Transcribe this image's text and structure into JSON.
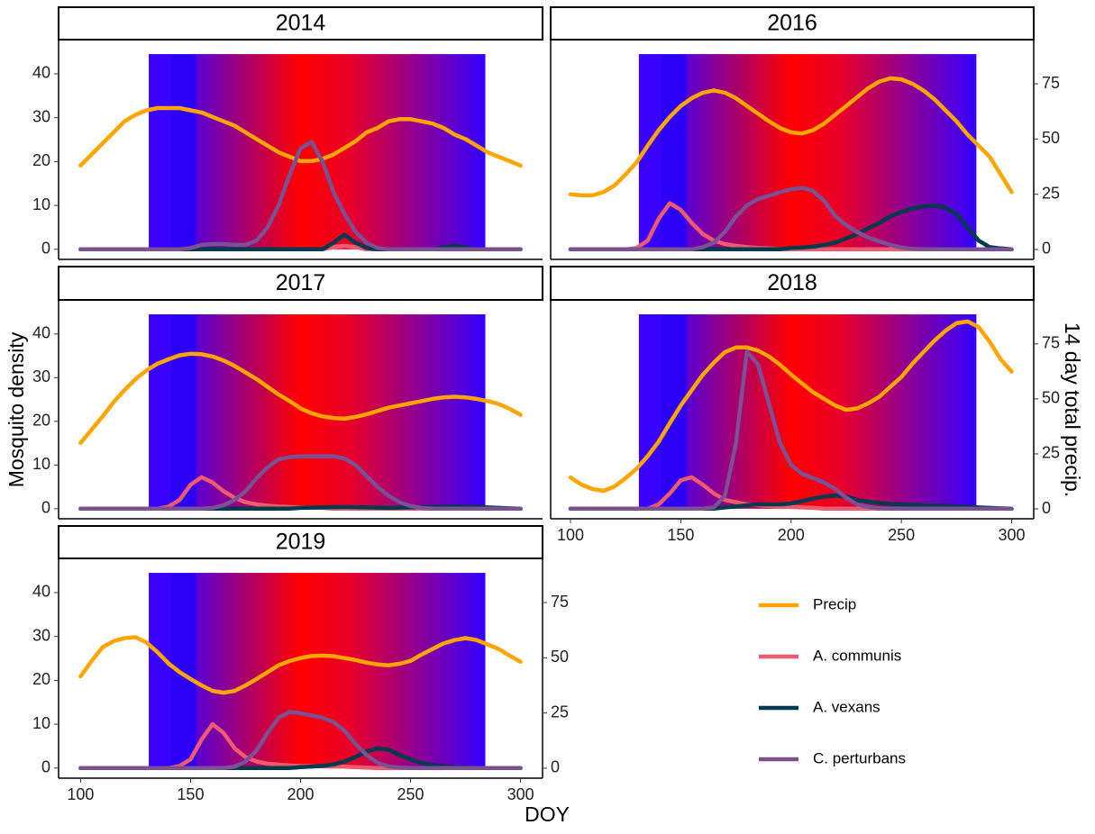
{
  "chart_data": [
    {
      "type": "line",
      "title": "2014",
      "y_label": "Mosquito density",
      "y2_label": "14 day total precip.",
      "x_label": "DOY",
      "x": [
        100,
        105,
        110,
        115,
        120,
        125,
        130,
        135,
        140,
        145,
        150,
        155,
        160,
        165,
        170,
        175,
        180,
        185,
        190,
        195,
        200,
        205,
        210,
        215,
        220,
        225,
        230,
        235,
        240,
        245,
        250,
        255,
        260,
        265,
        270,
        275,
        280,
        285,
        290,
        295,
        300
      ],
      "xlim": [
        90,
        310
      ],
      "ylim": [
        -2.3,
        47.8
      ],
      "y2lim": [
        -4.5,
        95
      ],
      "yticks": [
        0,
        10,
        20,
        30,
        40
      ],
      "shade": {
        "x": [
          131,
          284
        ],
        "y": [
          0,
          44.5
        ]
      },
      "series": [
        {
          "name": "Precip",
          "color": "#FFA500",
          "axis": "y2",
          "values": [
            38,
            43,
            48,
            53,
            58,
            61,
            63,
            64,
            64,
            64,
            63,
            62,
            60,
            58,
            56,
            53,
            50,
            47,
            44,
            42,
            40,
            40,
            41,
            43,
            46,
            49,
            53,
            55,
            58,
            59,
            59,
            58,
            57,
            55,
            52,
            50,
            47,
            44,
            42,
            40,
            38
          ]
        },
        {
          "name": "A. communis",
          "color": "#EE5A6E",
          "values": [
            0,
            0,
            0,
            0,
            0,
            0,
            0,
            0,
            0,
            0,
            0,
            0,
            0,
            0,
            0,
            0,
            0,
            0,
            0,
            0,
            0,
            0,
            0,
            0.5,
            0.8,
            0.5,
            0,
            0,
            0,
            0,
            0,
            0,
            0,
            0,
            0,
            0,
            0,
            0,
            0,
            0,
            0
          ]
        },
        {
          "name": "A. vexans",
          "color": "#003A4F",
          "values": [
            0,
            0,
            0,
            0,
            0,
            0,
            0,
            0,
            0,
            0,
            0,
            0,
            0,
            0,
            0,
            0,
            0,
            0,
            0,
            0,
            0,
            0,
            0,
            1.5,
            3.3,
            1.5,
            0.3,
            0,
            0,
            0,
            0,
            0,
            0,
            0.5,
            0.8,
            0.4,
            0,
            0,
            0,
            0,
            0
          ]
        },
        {
          "name": "C. perturbans",
          "color": "#7A5195",
          "values": [
            0,
            0,
            0,
            0,
            0,
            0,
            0,
            0,
            0,
            0,
            0.3,
            1,
            1.2,
            1.2,
            1,
            1,
            2,
            5,
            10,
            17,
            23,
            24.5,
            20,
            13,
            8,
            4,
            1.5,
            0.3,
            0,
            0,
            0,
            0,
            0,
            0,
            0,
            0,
            0,
            0,
            0,
            0,
            0
          ]
        }
      ]
    },
    {
      "type": "line",
      "title": "2016",
      "x": [
        100,
        105,
        110,
        115,
        120,
        125,
        130,
        135,
        140,
        145,
        150,
        155,
        160,
        165,
        170,
        175,
        180,
        185,
        190,
        195,
        200,
        205,
        210,
        215,
        220,
        225,
        230,
        235,
        240,
        245,
        250,
        255,
        260,
        265,
        270,
        275,
        280,
        285,
        290,
        295,
        300
      ],
      "xlim": [
        91,
        310
      ],
      "ylim": [
        -2.3,
        47.8
      ],
      "y2lim": [
        -4.5,
        95
      ],
      "y2ticks": [
        0,
        25,
        50,
        75
      ],
      "shade": {
        "x": [
          131,
          284
        ],
        "y": [
          0,
          44.5
        ]
      },
      "series": [
        {
          "axis": "y2",
          "values": [
            25,
            24.5,
            24.5,
            26,
            29,
            34,
            39.5,
            47,
            54,
            60,
            65,
            68.5,
            71,
            72,
            71,
            68.5,
            65,
            61.5,
            58,
            55,
            53,
            52.5,
            54,
            57,
            61,
            65,
            69,
            73,
            76,
            77.5,
            77,
            75,
            72,
            68,
            63,
            58,
            52,
            47,
            42,
            34,
            26
          ]
        },
        {
          "values": [
            0,
            0,
            0,
            0,
            0,
            0,
            0.3,
            2,
            7,
            10.5,
            9,
            6,
            3.5,
            2,
            1.2,
            0.8,
            0.5,
            0.3,
            0.2,
            0,
            0,
            0,
            0,
            0,
            0,
            0,
            0,
            0,
            0,
            0,
            0,
            0,
            0,
            0,
            0,
            0,
            0,
            0,
            0,
            0,
            0
          ]
        },
        {
          "values": [
            0,
            0,
            0,
            0,
            0,
            0,
            0,
            0,
            0,
            0,
            0,
            0,
            0,
            0,
            0,
            0,
            0,
            0,
            0,
            0,
            0.3,
            0.4,
            0.6,
            1,
            1.5,
            2.5,
            3.5,
            4.8,
            6,
            7.5,
            8.5,
            9.3,
            9.8,
            10,
            9.5,
            8,
            5,
            2,
            0.5,
            0.2,
            0
          ]
        },
        {
          "values": [
            0,
            0,
            0,
            0,
            0,
            0,
            0,
            0,
            0,
            0,
            0,
            0,
            0.5,
            1.5,
            4,
            7.5,
            10,
            11.5,
            12.2,
            13,
            13.7,
            14,
            13.3,
            11,
            7.6,
            5.5,
            3.9,
            2.7,
            1.8,
            1,
            0.4,
            0.1,
            0,
            0,
            0,
            0,
            0,
            0,
            0,
            0,
            0
          ]
        }
      ]
    },
    {
      "type": "line",
      "title": "2017",
      "x": [
        100,
        105,
        110,
        115,
        120,
        125,
        130,
        135,
        140,
        145,
        150,
        155,
        160,
        165,
        170,
        175,
        180,
        185,
        190,
        195,
        200,
        205,
        210,
        215,
        220,
        225,
        230,
        235,
        240,
        245,
        250,
        255,
        260,
        265,
        270,
        275,
        280,
        285,
        290,
        295,
        300
      ],
      "xlim": [
        90,
        310
      ],
      "ylim": [
        -2.3,
        47.8
      ],
      "y2lim": [
        -4.5,
        95
      ],
      "yticks": [
        0,
        10,
        20,
        30,
        40
      ],
      "shade": {
        "x": [
          131,
          284
        ],
        "y": [
          0,
          44.5
        ]
      },
      "series": [
        {
          "axis": "y2",
          "values": [
            30,
            36,
            42,
            48.5,
            54,
            59,
            63,
            66,
            68,
            69.8,
            70.5,
            70.3,
            69.3,
            67.5,
            65,
            62,
            59,
            55.5,
            52,
            49,
            45.7,
            43.5,
            42,
            41.3,
            41,
            41.8,
            43,
            44.5,
            46,
            47,
            48,
            49,
            50,
            50.7,
            51,
            50.7,
            50,
            49,
            47.7,
            45.5,
            42.8
          ]
        },
        {
          "values": [
            0,
            0,
            0,
            0,
            0,
            0,
            0,
            0,
            0.5,
            2,
            5.5,
            7.2,
            6,
            4,
            2.5,
            1.5,
            1,
            0.7,
            0.5,
            0.4,
            0.3,
            0.2,
            0.2,
            0,
            0,
            0,
            0,
            0,
            0,
            0,
            0,
            0,
            0,
            0,
            0,
            0,
            0,
            0,
            0,
            0,
            0
          ]
        },
        {
          "values": [
            0,
            0,
            0,
            0,
            0,
            0,
            0,
            0,
            0,
            0,
            0,
            0,
            0,
            0,
            0,
            0,
            0,
            0,
            0,
            0,
            0.2,
            0.25,
            0.3,
            0.35,
            0.4,
            0.35,
            0.3,
            0.25,
            0.2,
            0.25,
            0.3,
            0.35,
            0.4,
            0.45,
            0.5,
            0.45,
            0.4,
            0.3,
            0.2,
            0.1,
            0
          ]
        },
        {
          "values": [
            0,
            0,
            0,
            0,
            0,
            0,
            0,
            0,
            0,
            0,
            0,
            0,
            0.2,
            0.8,
            2,
            4,
            7,
            9.5,
            11.3,
            11.8,
            12,
            12,
            12,
            12,
            11.5,
            10,
            7.5,
            5,
            3,
            1.5,
            0.6,
            0.2,
            0,
            0,
            0,
            0,
            0,
            0,
            0,
            0,
            0
          ]
        }
      ]
    },
    {
      "type": "line",
      "title": "2018",
      "x": [
        100,
        105,
        110,
        115,
        120,
        125,
        130,
        135,
        140,
        145,
        150,
        155,
        160,
        165,
        170,
        175,
        180,
        185,
        190,
        195,
        200,
        205,
        210,
        215,
        220,
        225,
        230,
        235,
        240,
        245,
        250,
        255,
        260,
        265,
        270,
        275,
        280,
        285,
        290,
        295,
        300
      ],
      "xlim": [
        91,
        310
      ],
      "ylim": [
        -2.3,
        47.8
      ],
      "y2lim": [
        -4.5,
        95
      ],
      "y2ticks": [
        0,
        25,
        50,
        75
      ],
      "xticks": [
        100,
        150,
        200,
        250,
        300
      ],
      "shade": {
        "x": [
          131,
          284
        ],
        "y": [
          0,
          44.5
        ]
      },
      "series": [
        {
          "axis": "y2",
          "values": [
            14.3,
            11,
            9,
            8.2,
            10.2,
            14,
            18.3,
            24,
            30.6,
            39,
            47,
            54,
            61,
            66.5,
            71.3,
            73.4,
            73.4,
            72,
            69.3,
            65.5,
            61,
            57,
            53,
            50,
            47,
            45,
            45.7,
            48,
            51,
            55.5,
            60,
            66,
            71.3,
            76.5,
            81,
            84.4,
            85.2,
            82.7,
            76,
            68,
            62.4
          ]
        },
        {
          "values": [
            0,
            0,
            0,
            0,
            0,
            0,
            0,
            0,
            1,
            3.5,
            6.5,
            7.2,
            5.5,
            3.5,
            2,
            1.5,
            1,
            0.8,
            0.6,
            0.5,
            0.4,
            0.3,
            0.2,
            0,
            0,
            0,
            0,
            0,
            0,
            0,
            0,
            0,
            0,
            0,
            0,
            0,
            0,
            0,
            0,
            0,
            0
          ]
        },
        {
          "values": [
            0,
            0,
            0,
            0,
            0,
            0,
            0,
            0,
            0,
            0,
            0,
            0,
            0,
            0,
            0.3,
            0.5,
            0.8,
            1,
            1,
            1,
            1.2,
            1.7,
            2.3,
            2.8,
            3,
            2.8,
            2,
            1.6,
            1.3,
            1.1,
            1,
            0.9,
            0.8,
            0.7,
            0.6,
            0.5,
            0.4,
            0.3,
            0.2,
            0.1,
            0
          ]
        },
        {
          "values": [
            0,
            0,
            0,
            0,
            0,
            0,
            0,
            0,
            0,
            0,
            0,
            0,
            0,
            0.3,
            3,
            15,
            36,
            33,
            24,
            15,
            10,
            8,
            7,
            6,
            4.5,
            2.5,
            1,
            0.4,
            0.1,
            0,
            0,
            0,
            0,
            0,
            0,
            0,
            0,
            0,
            0,
            0,
            0
          ]
        }
      ]
    },
    {
      "type": "line",
      "title": "2019",
      "x": [
        100,
        105,
        110,
        115,
        120,
        125,
        130,
        135,
        140,
        145,
        150,
        155,
        160,
        165,
        170,
        175,
        180,
        185,
        190,
        195,
        200,
        205,
        210,
        215,
        220,
        225,
        230,
        235,
        240,
        245,
        250,
        255,
        260,
        265,
        270,
        275,
        280,
        285,
        290,
        295,
        300
      ],
      "xlim": [
        90,
        310
      ],
      "ylim": [
        -2.3,
        47.8
      ],
      "y2lim": [
        -4.5,
        95
      ],
      "yticks": [
        0,
        10,
        20,
        30,
        40
      ],
      "y2ticks": [
        0,
        25,
        50,
        75
      ],
      "xticks": [
        100,
        150,
        200,
        250,
        300
      ],
      "shade": {
        "x": [
          131,
          284
        ],
        "y": [
          0,
          44.5
        ]
      },
      "series": [
        {
          "axis": "y2",
          "values": [
            41.6,
            48.5,
            54.8,
            57.5,
            58.9,
            59.3,
            56.9,
            52.5,
            47.4,
            43.5,
            40.4,
            37.5,
            35,
            34.2,
            35,
            37.5,
            40.4,
            43.5,
            46.6,
            48.5,
            49.9,
            50.8,
            51,
            50.7,
            49.9,
            49,
            47.8,
            47,
            46.6,
            47.3,
            48.6,
            51.5,
            54,
            56.5,
            58,
            58.9,
            58,
            56,
            54,
            51,
            48.2
          ]
        },
        {
          "values": [
            0,
            0,
            0,
            0,
            0,
            0,
            0,
            0,
            0,
            0.5,
            2,
            6.5,
            10,
            8,
            4.5,
            2.5,
            1.5,
            1,
            0.8,
            0.6,
            0.5,
            0.45,
            0.4,
            0.35,
            0.3,
            0.2,
            0.1,
            0,
            0,
            0,
            0,
            0,
            0,
            0,
            0,
            0,
            0,
            0,
            0,
            0,
            0
          ]
        },
        {
          "values": [
            0,
            0,
            0,
            0,
            0,
            0,
            0,
            0,
            0,
            0,
            0,
            0,
            0,
            0,
            0,
            0,
            0,
            0,
            0,
            0,
            0.2,
            0.35,
            0.5,
            0.8,
            1.5,
            2.5,
            3.8,
            4.5,
            4.2,
            3,
            2,
            1.2,
            0.7,
            0.4,
            0.2,
            0.1,
            0,
            0,
            0,
            0,
            0
          ]
        },
        {
          "values": [
            0,
            0,
            0,
            0,
            0,
            0,
            0,
            0,
            0,
            0,
            0,
            0,
            0,
            0,
            0.3,
            1.5,
            4,
            8,
            11.5,
            12.8,
            12.5,
            12,
            11.5,
            10.5,
            8.5,
            5.5,
            3,
            1.2,
            0.4,
            0.1,
            0,
            0,
            0,
            0,
            0,
            0,
            0,
            0,
            0,
            0,
            0
          ]
        }
      ]
    }
  ]
}
